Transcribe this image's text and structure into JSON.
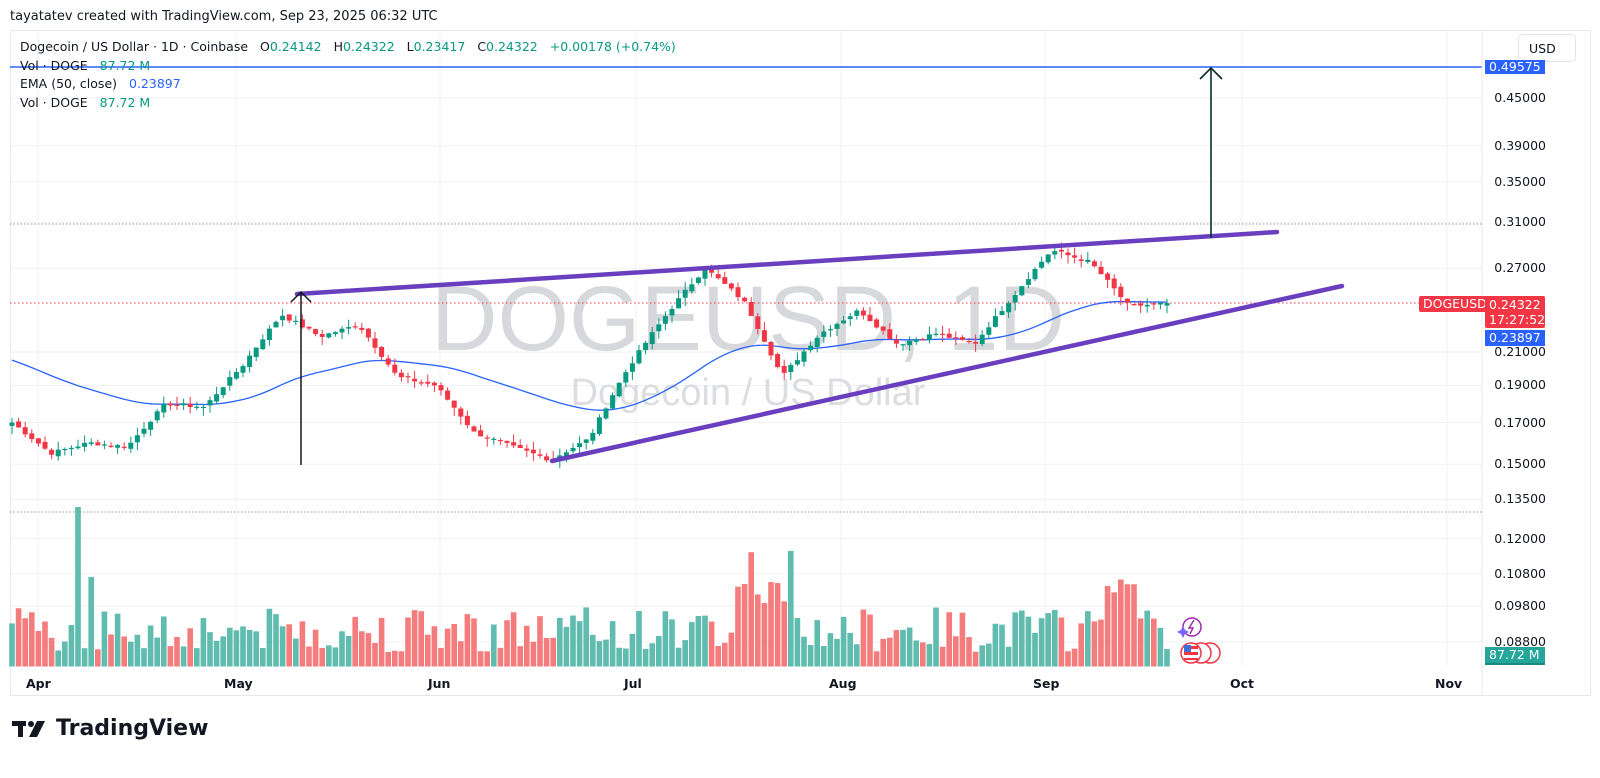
{
  "caption": "tayatatev created with TradingView.com, Sep 23, 2025 06:32 UTC",
  "legend": {
    "symbol_title": "Dogecoin / US Dollar · 1D · Coinbase",
    "open_label": "O",
    "open": "0.24142",
    "high_label": "H",
    "high": "0.24322",
    "low_label": "L",
    "low": "0.23417",
    "close_label": "C",
    "close": "0.24322",
    "change": "+0.00178 (+0.74%)",
    "vol_label_1": "Vol · DOGE",
    "vol_value_1": "87.72 M",
    "ema_label": "EMA (50, close)",
    "ema_value": "0.23897",
    "vol_label_2": "Vol · DOGE",
    "vol_value_2": "87.72 M"
  },
  "watermark": {
    "symbol": "DOGEUSD, 1D",
    "name": "Dogecoin / US Dollar"
  },
  "currency_button": "USD",
  "price_tags": {
    "target": "0.49575",
    "symbol": "DOGEUSD",
    "last_price": "0.24322",
    "countdown": "17:27:52",
    "ema": "0.23897",
    "volume": "87.72 M"
  },
  "colors": {
    "up": "#089981",
    "down": "#f23645",
    "vol_up": "#5fbcaf",
    "vol_down": "#f47c7c",
    "ema": "#2962ff",
    "trendline": "#6a3fbf",
    "target_line": "#2962ff",
    "arrow": "#0b2e2a"
  },
  "brand": "TradingView",
  "chart_data": {
    "type": "candlestick",
    "title": "Dogecoin / US Dollar · 1D · Coinbase",
    "y_axis": {
      "scale": "log",
      "tick_labels": [
        "0.45000",
        "0.39000",
        "0.35000",
        "0.31000",
        "0.27000",
        "0.21000",
        "0.19000",
        "0.17000",
        "0.15000",
        "0.13500",
        "0.12000",
        "0.10800",
        "0.09800",
        "0.08800"
      ],
      "tick_values": [
        0.45,
        0.39,
        0.35,
        0.31,
        0.27,
        0.21,
        0.19,
        0.17,
        0.15,
        0.135,
        0.12,
        0.108,
        0.098,
        0.088
      ],
      "range": [
        0.082,
        0.51
      ]
    },
    "x_axis": {
      "tick_labels": [
        "Apr",
        "May",
        "Jun",
        "Jul",
        "Aug",
        "Sep",
        "Oct",
        "Nov"
      ],
      "range": [
        "2025-03-27",
        "2025-11-05"
      ]
    },
    "last_ohlc": {
      "open": 0.24142,
      "high": 0.24322,
      "low": 0.23417,
      "close": 0.24322,
      "change": 0.00178,
      "change_pct": 0.74
    },
    "ema50_last": 0.23897,
    "volume_last": "87.72M",
    "horizontal_levels": [
      {
        "value": 0.49575,
        "style": "solid",
        "color": "#2962ff",
        "label": "target"
      },
      {
        "value": 0.31,
        "style": "dotted",
        "color": "#9598a1"
      },
      {
        "value": 0.133,
        "style": "dotted",
        "color": "#9598a1"
      }
    ],
    "trendlines": [
      {
        "name": "upper",
        "from": [
          "2025-05-10",
          0.256
        ],
        "to": [
          "2025-10-06",
          0.301
        ]
      },
      {
        "name": "lower",
        "from": [
          "2025-06-18",
          0.153
        ],
        "to": [
          "2025-10-16",
          0.258
        ]
      }
    ],
    "arrows": [
      {
        "name": "pole",
        "x": "2025-05-11",
        "from": 0.153,
        "to": 0.258
      },
      {
        "name": "target-projection",
        "x": "2025-09-26",
        "from": 0.3,
        "to": 0.49575
      }
    ],
    "series_closes_approx": {
      "dates": [
        "Apr 1",
        "Apr 7",
        "Apr 9",
        "Apr 15",
        "Apr 22",
        "May 1",
        "May 8",
        "May 10",
        "May 15",
        "May 23",
        "May 30",
        "Jun 5",
        "Jun 12",
        "Jun 20",
        "Jun 22",
        "Jul 1",
        "Jul 10",
        "Jul 15",
        "Jul 21",
        "Jul 25",
        "Aug 2",
        "Aug 10",
        "Aug 14",
        "Aug 20",
        "Aug 26",
        "Sep 1",
        "Sep 8",
        "Sep 13",
        "Sep 18",
        "Sep 22",
        "Sep 23"
      ],
      "close": [
        0.17,
        0.155,
        0.16,
        0.158,
        0.18,
        0.178,
        0.202,
        0.235,
        0.22,
        0.228,
        0.195,
        0.19,
        0.165,
        0.158,
        0.152,
        0.162,
        0.2,
        0.235,
        0.27,
        0.245,
        0.195,
        0.222,
        0.238,
        0.215,
        0.222,
        0.215,
        0.248,
        0.285,
        0.275,
        0.241,
        0.243
      ]
    }
  }
}
